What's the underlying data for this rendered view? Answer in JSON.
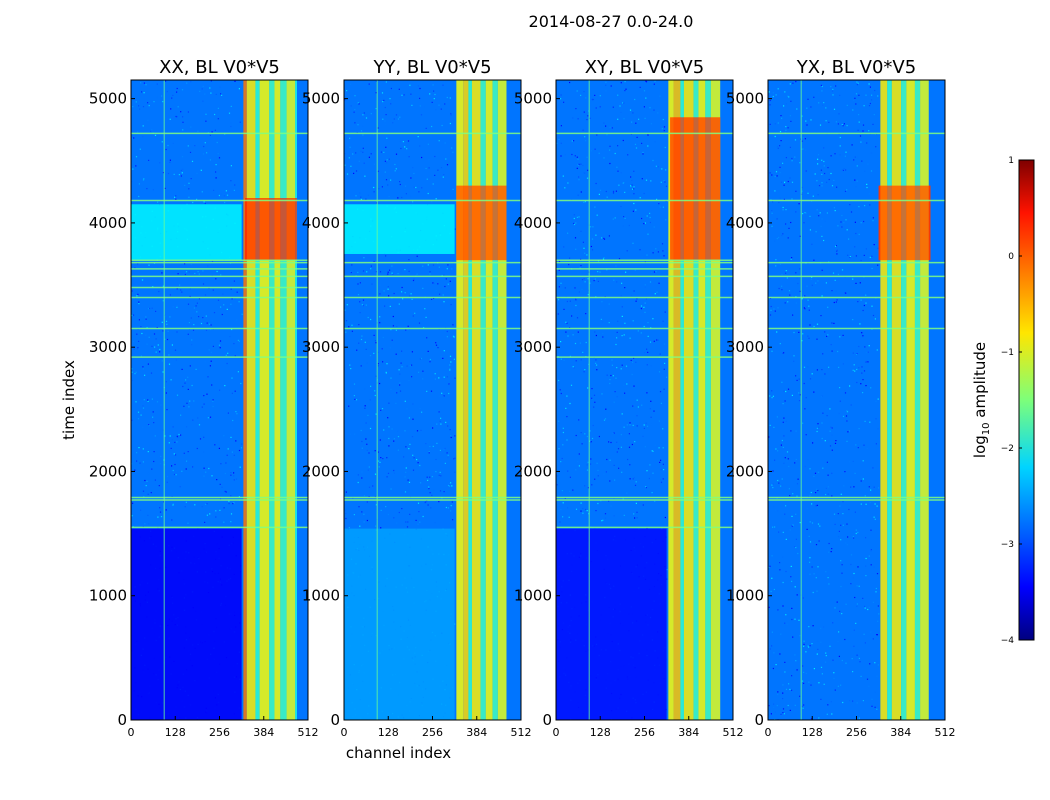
{
  "figure_title": "2014-08-27 0.0-24.0",
  "chart_data": [
    {
      "type": "heatmap",
      "title": "XX, BL V0*V5",
      "xlabel": "",
      "ylabel": "time index",
      "xlim": [
        0,
        512
      ],
      "ylim": [
        0,
        5150
      ],
      "xticks": [
        "0",
        "128",
        "256",
        "384",
        "512"
      ],
      "yticks": [
        "0",
        "1000",
        "2000",
        "3000",
        "4000",
        "5000"
      ],
      "background_level": -2.8,
      "bands": [
        {
          "from": 325,
          "to": 335,
          "level": -0.2
        },
        {
          "from": 335,
          "to": 360,
          "level": -0.8
        },
        {
          "from": 360,
          "to": 372,
          "level": -1.9
        },
        {
          "from": 372,
          "to": 400,
          "level": -0.9
        },
        {
          "from": 400,
          "to": 415,
          "level": -1.8
        },
        {
          "from": 415,
          "to": 432,
          "level": -0.9
        },
        {
          "from": 432,
          "to": 450,
          "level": -1.8
        },
        {
          "from": 450,
          "to": 475,
          "level": -1.0
        },
        {
          "from": 475,
          "to": 480,
          "level": -2.0
        }
      ],
      "regions": [
        {
          "t0": 0,
          "t1": 1540,
          "c0": 0,
          "c1": 320,
          "level": -3.4
        },
        {
          "t0": 3700,
          "t1": 4150,
          "c0": 0,
          "c1": 320,
          "level": -2.2
        },
        {
          "t0": 3700,
          "t1": 4200,
          "c0": 330,
          "c1": 480,
          "level": 0.3
        }
      ],
      "rfi_rows": [
        1550,
        1770,
        1790,
        2920,
        3150,
        3400,
        3480,
        3570,
        3630,
        3680,
        3700,
        4180,
        4720
      ]
    },
    {
      "type": "heatmap",
      "title": "YY, BL V0*V5",
      "xlabel": "channel index",
      "ylabel": "",
      "xlim": [
        0,
        512
      ],
      "ylim": [
        0,
        5150
      ],
      "xticks": [
        "0",
        "128",
        "256",
        "384",
        "512"
      ],
      "yticks": [
        "0",
        "1000",
        "2000",
        "3000",
        "4000",
        "5000"
      ],
      "background_level": -2.8,
      "bands": [
        {
          "from": 325,
          "to": 345,
          "level": -0.9
        },
        {
          "from": 345,
          "to": 360,
          "level": -0.7
        },
        {
          "from": 360,
          "to": 370,
          "level": -1.9
        },
        {
          "from": 370,
          "to": 395,
          "level": -0.8
        },
        {
          "from": 395,
          "to": 410,
          "level": -1.8
        },
        {
          "from": 410,
          "to": 430,
          "level": -0.9
        },
        {
          "from": 430,
          "to": 445,
          "level": -1.8
        },
        {
          "from": 445,
          "to": 470,
          "level": -1.0
        }
      ],
      "regions": [
        {
          "t0": 0,
          "t1": 1540,
          "c0": 0,
          "c1": 320,
          "level": -2.6
        },
        {
          "t0": 3750,
          "t1": 4150,
          "c0": 0,
          "c1": 320,
          "level": -2.2
        },
        {
          "t0": 3700,
          "t1": 4300,
          "c0": 325,
          "c1": 470,
          "level": 0.1
        }
      ],
      "rfi_rows": [
        1770,
        1790,
        3150,
        3400,
        3570,
        3680,
        4180,
        4720
      ]
    },
    {
      "type": "heatmap",
      "title": "XY, BL V0*V5",
      "xlabel": "",
      "ylabel": "",
      "xlim": [
        0,
        512
      ],
      "ylim": [
        0,
        5150
      ],
      "xticks": [
        "0",
        "128",
        "256",
        "384",
        "512"
      ],
      "yticks": [
        "0",
        "1000",
        "2000",
        "3000",
        "4000",
        "5000"
      ],
      "background_level": -2.8,
      "bands": [
        {
          "from": 325,
          "to": 340,
          "level": -0.9
        },
        {
          "from": 340,
          "to": 360,
          "level": -0.6
        },
        {
          "from": 360,
          "to": 370,
          "level": -1.9
        },
        {
          "from": 370,
          "to": 398,
          "level": -0.8
        },
        {
          "from": 398,
          "to": 412,
          "level": -1.8
        },
        {
          "from": 412,
          "to": 432,
          "level": -0.9
        },
        {
          "from": 432,
          "to": 448,
          "level": -1.8
        },
        {
          "from": 448,
          "to": 475,
          "level": -1.0
        }
      ],
      "regions": [
        {
          "t0": 0,
          "t1": 1540,
          "c0": 0,
          "c1": 320,
          "level": -3.3
        },
        {
          "t0": 3700,
          "t1": 4850,
          "c0": 330,
          "c1": 475,
          "level": 0.2
        }
      ],
      "rfi_rows": [
        1550,
        1770,
        1790,
        2920,
        3150,
        3400,
        3570,
        3630,
        3680,
        3700,
        4180,
        4720
      ]
    },
    {
      "type": "heatmap",
      "title": "YX, BL V0*V5",
      "xlabel": "",
      "ylabel": "",
      "xlim": [
        0,
        512
      ],
      "ylim": [
        0,
        5150
      ],
      "xticks": [
        "0",
        "128",
        "256",
        "384",
        "512"
      ],
      "yticks": [
        "0",
        "1000",
        "2000",
        "3000",
        "4000",
        "5000"
      ],
      "background_level": -2.8,
      "bands": [
        {
          "from": 325,
          "to": 345,
          "level": -0.8
        },
        {
          "from": 345,
          "to": 358,
          "level": -1.9
        },
        {
          "from": 358,
          "to": 385,
          "level": -0.8
        },
        {
          "from": 385,
          "to": 400,
          "level": -1.8
        },
        {
          "from": 400,
          "to": 425,
          "level": -0.9
        },
        {
          "from": 425,
          "to": 440,
          "level": -1.8
        },
        {
          "from": 440,
          "to": 465,
          "level": -1.0
        }
      ],
      "regions": [
        {
          "t0": 3700,
          "t1": 4300,
          "c0": 320,
          "c1": 470,
          "level": 0.1
        }
      ],
      "rfi_rows": [
        1770,
        1790,
        3150,
        3400,
        3570,
        3680,
        4180,
        4720
      ]
    }
  ],
  "colorbar": {
    "label": "log",
    "label_sub": "10",
    "label_suffix": " amplitude",
    "range": [
      -4,
      1
    ],
    "ticks": [
      "1",
      "0",
      "−1",
      "−2",
      "−3",
      "−4"
    ],
    "colormap": "jet"
  }
}
